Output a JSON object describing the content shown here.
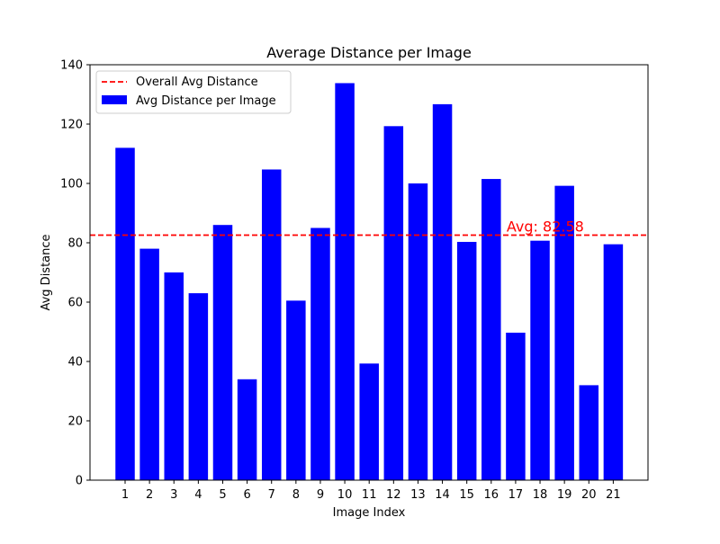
{
  "chart_data": {
    "type": "bar",
    "title": "Average Distance per Image",
    "xlabel": "Image Index",
    "ylabel": "Avg Distance",
    "categories": [
      "1",
      "2",
      "3",
      "4",
      "5",
      "6",
      "7",
      "8",
      "9",
      "10",
      "11",
      "12",
      "13",
      "14",
      "15",
      "16",
      "17",
      "18",
      "19",
      "20",
      "21"
    ],
    "values": [
      112,
      78,
      70,
      63,
      86,
      34,
      104.7,
      60.5,
      85,
      133.8,
      39.3,
      119.3,
      100,
      126.7,
      80.3,
      101.5,
      49.7,
      80.7,
      99.2,
      32,
      79.5
    ],
    "ylim": [
      0,
      140
    ],
    "yticks": [
      0,
      20,
      40,
      60,
      80,
      100,
      120,
      140
    ],
    "grid": false,
    "bar_color": "#0000ff",
    "series_name": "Avg Distance per Image",
    "reference_line": {
      "value": 82.58,
      "name": "Overall Avg Distance",
      "label": "Avg: 82.58",
      "color": "#ff0000",
      "style": "dashed"
    },
    "legend": {
      "placement": "upper-left",
      "entries": [
        "Overall Avg Distance",
        "Avg Distance per Image"
      ]
    }
  }
}
